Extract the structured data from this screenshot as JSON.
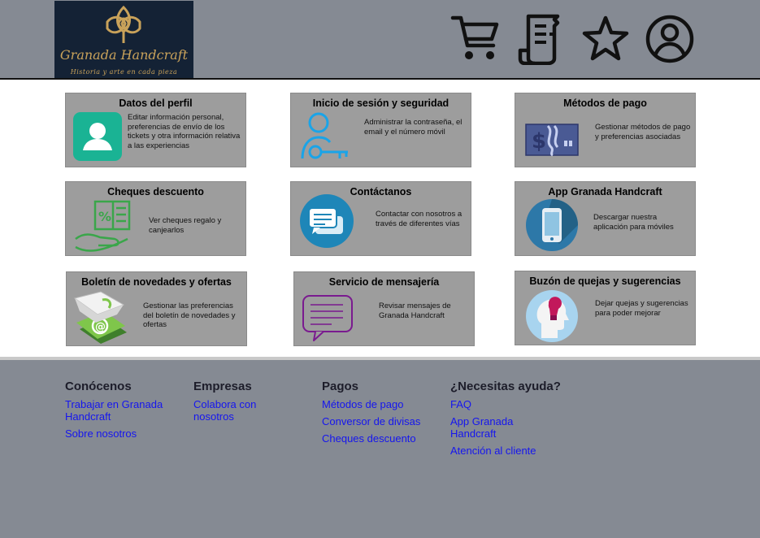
{
  "brand": {
    "name": "Granada Handcraft",
    "tagline": "Historia y arte en cada pieza"
  },
  "header_icons": [
    "cart-icon",
    "receipt-icon",
    "star-icon",
    "user-icon"
  ],
  "cards": [
    {
      "title": "Datos del perfil",
      "desc": "Editar información personal, preferencias de envío de los tickets y otra información relativa a las experiencias",
      "icon": "profile-icon"
    },
    {
      "title": "Inicio de sesión y seguridad",
      "desc": "Administrar la contraseña, el email y el número móvil",
      "icon": "user-key-icon"
    },
    {
      "title": "Métodos de pago",
      "desc": "Gestionar métodos de pago y preferencias asociadas",
      "icon": "payment-icon"
    },
    {
      "title": "Cheques descuento",
      "desc": "Ver cheques regalo y canjearlos",
      "icon": "coupon-hand-icon"
    },
    {
      "title": "Contáctanos",
      "desc": "Contactar con nosotros a través de diferentes vías",
      "icon": "chat-icon"
    },
    {
      "title": "App Granada Handcraft",
      "desc": "Descargar nuestra aplicación para móviles",
      "icon": "smartphone-icon"
    },
    {
      "title": "Boletín de novedades y ofertas",
      "desc": "Gestionar las preferencias del boletín de novedades y ofertas",
      "icon": "newsletter-icon"
    },
    {
      "title": "Servicio de mensajería",
      "desc": "Revisar mensajes de Granada Handcraft",
      "icon": "message-icon"
    },
    {
      "title": "Buzón de quejas y sugerencias",
      "desc": "Dejar quejas y sugerencias para poder mejorar",
      "icon": "idea-icon"
    }
  ],
  "footer": {
    "columns": [
      {
        "heading": "Conócenos",
        "links": [
          "Trabajar en Granada Handcraft",
          "Sobre nosotros"
        ]
      },
      {
        "heading": "Empresas",
        "links": [
          "Colabora con nosotros"
        ]
      },
      {
        "heading": "Pagos",
        "links": [
          "Métodos de pago",
          "Conversor de divisas",
          "Cheques descuento"
        ]
      },
      {
        "heading": "¿Necesitas ayuda?",
        "links": [
          "FAQ",
          "App Granada Handcraft",
          "Atención al cliente"
        ]
      }
    ]
  },
  "colors": {
    "header_bg": "#858a93",
    "card_bg": "#9d9d9d",
    "link": "#1515ef",
    "logo_bg": "#142235",
    "logo_gold": "#c9a25a"
  }
}
